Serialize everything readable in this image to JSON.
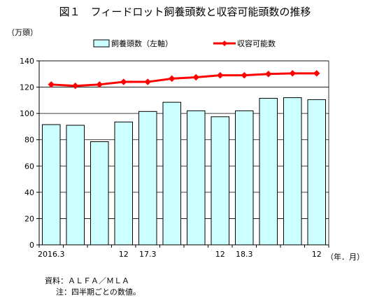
{
  "figure_title": "図１　フィードロット飼養頭数と収容可能頭数の推移",
  "notes": {
    "source": "資料：ＡＬＦＡ／ＭＬＡ",
    "footnote": "注：四半期ごとの数値。"
  },
  "chart_data": {
    "type": "bar+line",
    "title": "図１　フィードロット飼養頭数と収容可能頭数の推移",
    "y_unit_label": "（万頭）",
    "x_unit_label": "（年．月）",
    "ylim": [
      0,
      140
    ],
    "yticks": [
      0,
      20,
      40,
      60,
      80,
      100,
      120,
      140
    ],
    "grid": true,
    "legend_position": "top-center",
    "categories": [
      "2016.3",
      "",
      "",
      "12",
      "17.3",
      "",
      "",
      "12",
      "18.3",
      "",
      "",
      "12"
    ],
    "series": [
      {
        "name": "飼養頭数（左軸）",
        "type": "bar",
        "color": "#ccffff",
        "values": [
          91.5,
          91,
          78.5,
          93.5,
          101.5,
          108.5,
          102,
          97.5,
          102,
          111.5,
          112,
          110.5
        ]
      },
      {
        "name": "収容可能数",
        "type": "line",
        "color": "#ff0000",
        "values": [
          122,
          121,
          122,
          124,
          124,
          126.5,
          127.5,
          129,
          129,
          130,
          130.5,
          130.5
        ]
      }
    ]
  }
}
